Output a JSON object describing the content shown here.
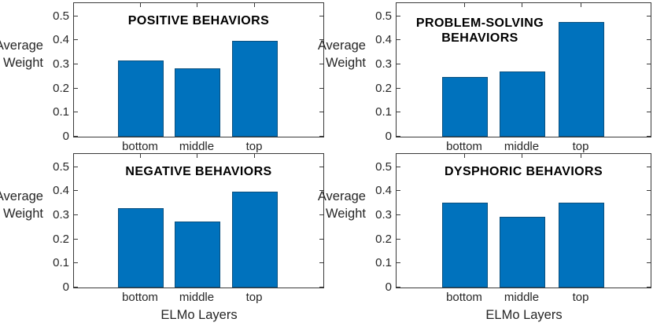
{
  "figure": {
    "background": "#ffffff",
    "bar_color": "#0072BD",
    "bar_edge_color": "#0a507f",
    "axis_color": "#3a3a3a",
    "text_color": "#262626",
    "title_color": "#000000",
    "ylabel_lines": [
      "Average",
      "Weight"
    ],
    "xlabel": "ELMo Layers"
  },
  "chart_data": [
    {
      "type": "bar",
      "title": "POSITIVE BEHAVIORS",
      "title_lines": [
        "POSITIVE BEHAVIORS"
      ],
      "categories": [
        "bottom",
        "middle",
        "top"
      ],
      "values": [
        0.318,
        0.283,
        0.399
      ],
      "xlabel": "",
      "ylabel": "Average Weight",
      "ylim": [
        0,
        0.555
      ],
      "yticks": [
        0,
        0.1,
        0.2,
        0.3,
        0.4,
        0.5
      ],
      "grid": false,
      "legend": "none"
    },
    {
      "type": "bar",
      "title": "PROBLEM-SOLVING BEHAVIORS",
      "title_lines": [
        "PROBLEM-SOLVING",
        "BEHAVIORS"
      ],
      "categories": [
        "bottom",
        "middle",
        "top"
      ],
      "values": [
        0.249,
        0.272,
        0.478
      ],
      "xlabel": "",
      "ylabel": "Average Weight",
      "ylim": [
        0,
        0.555
      ],
      "yticks": [
        0,
        0.1,
        0.2,
        0.3,
        0.4,
        0.5
      ],
      "grid": false,
      "legend": "none"
    },
    {
      "type": "bar",
      "title": "NEGATIVE BEHAVIORS",
      "title_lines": [
        "NEGATIVE BEHAVIORS"
      ],
      "categories": [
        "bottom",
        "middle",
        "top"
      ],
      "values": [
        0.33,
        0.275,
        0.398
      ],
      "xlabel": "ELMo Layers",
      "ylabel": "Average Weight",
      "ylim": [
        0,
        0.555
      ],
      "yticks": [
        0,
        0.1,
        0.2,
        0.3,
        0.4,
        0.5
      ],
      "grid": false,
      "legend": "none"
    },
    {
      "type": "bar",
      "title": "DYSPHORIC BEHAVIORS",
      "title_lines": [
        "DYSPHORIC BEHAVIORS"
      ],
      "categories": [
        "bottom",
        "middle",
        "top"
      ],
      "values": [
        0.351,
        0.295,
        0.353
      ],
      "xlabel": "ELMo Layers",
      "ylabel": "Average Weight",
      "ylim": [
        0,
        0.555
      ],
      "yticks": [
        0,
        0.1,
        0.2,
        0.3,
        0.4,
        0.5
      ],
      "grid": false,
      "legend": "none"
    }
  ]
}
